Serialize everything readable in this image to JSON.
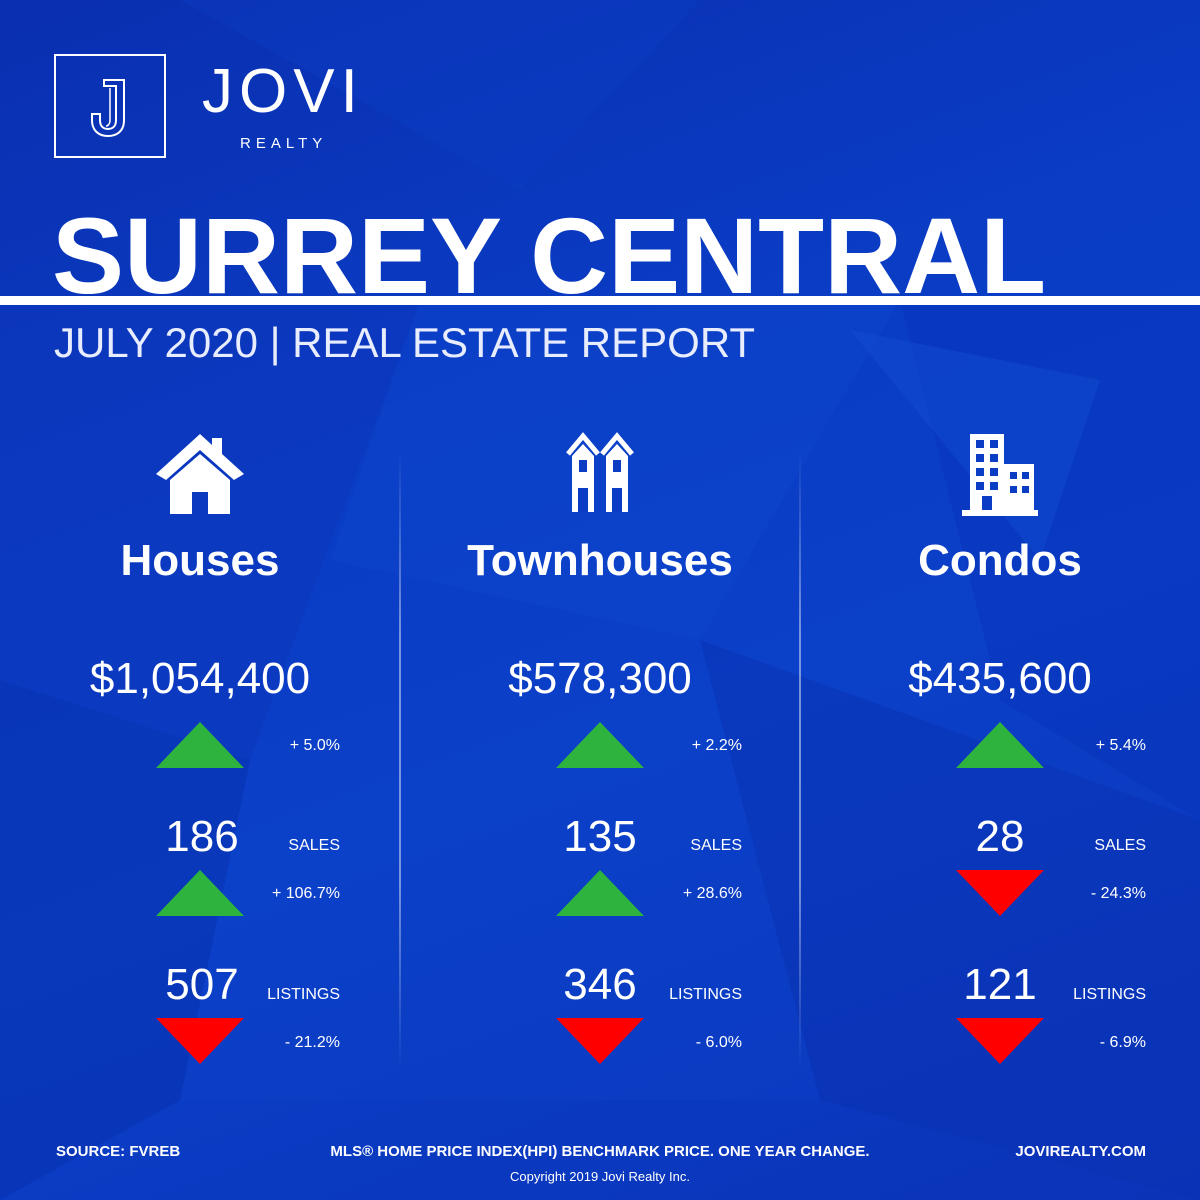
{
  "brand": {
    "name": "JOVI",
    "sub": "REALTY",
    "logo_letter": "J"
  },
  "title": "SURREY CENTRAL",
  "subtitle": "JULY 2020 | REAL ESTATE REPORT",
  "colors": {
    "background": "#0a3cc4",
    "up": "#2eb33f",
    "down": "#ff0000",
    "text": "#ffffff"
  },
  "columns": [
    {
      "icon": "house-icon",
      "name": "Houses",
      "price": "$1,054,400",
      "price_change": "+ 5.0%",
      "price_trend": "up",
      "sales": "186",
      "sales_label": "SALES",
      "sales_change": "+ 106.7%",
      "sales_trend": "up",
      "listings": "507",
      "listings_label": "LISTINGS",
      "listings_change": "- 21.2%",
      "listings_trend": "down"
    },
    {
      "icon": "townhouse-icon",
      "name": "Townhouses",
      "price": "$578,300",
      "price_change": "+ 2.2%",
      "price_trend": "up",
      "sales": "135",
      "sales_label": "SALES",
      "sales_change": "+ 28.6%",
      "sales_trend": "up",
      "listings": "346",
      "listings_label": "LISTINGS",
      "listings_change": "- 6.0%",
      "listings_trend": "down"
    },
    {
      "icon": "condo-building-icon",
      "name": "Condos",
      "price": "$435,600",
      "price_change": "+ 5.4%",
      "price_trend": "up",
      "sales": "28",
      "sales_label": "SALES",
      "sales_change": "- 24.3%",
      "sales_trend": "down",
      "listings": "121",
      "listings_label": "LISTINGS",
      "listings_change": "- 6.9%",
      "listings_trend": "down"
    }
  ],
  "footer": {
    "source": "SOURCE:  FVREB",
    "note": "MLS® HOME PRICE INDEX(HPI) BENCHMARK PRICE. ONE YEAR CHANGE.",
    "website": "JOVIREALTY.COM",
    "copyright": "Copyright 2019 Jovi Realty Inc."
  }
}
